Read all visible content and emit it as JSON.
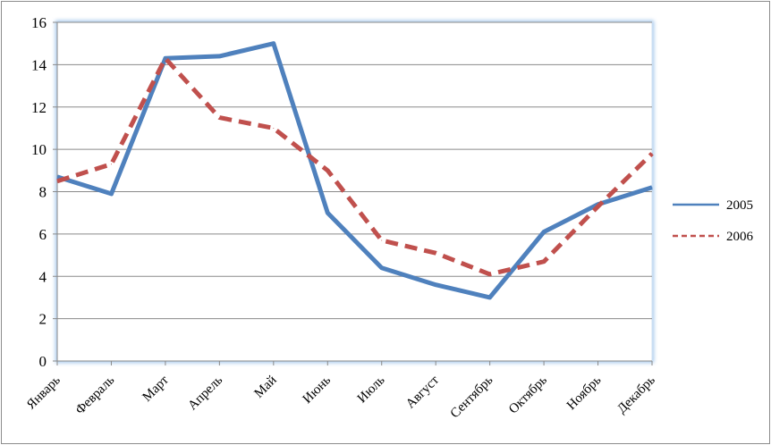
{
  "chart_data": {
    "type": "line",
    "title": "",
    "xlabel": "",
    "ylabel": "",
    "categories": [
      "Январь",
      "Февраль",
      "Март",
      "Апрель",
      "Май",
      "Июнь",
      "Июль",
      "Август",
      "Сентябрь",
      "Октябрь",
      "Ноябрь",
      "Декабрь"
    ],
    "series": [
      {
        "name": "2005",
        "values": [
          8.7,
          7.9,
          14.3,
          14.4,
          15.0,
          7.0,
          4.4,
          3.6,
          3.0,
          6.1,
          7.4,
          8.2
        ],
        "color": "#4f81bd",
        "style": "solid"
      },
      {
        "name": "2006",
        "values": [
          8.5,
          9.3,
          14.3,
          11.5,
          11.0,
          9.0,
          5.7,
          5.1,
          4.1,
          4.7,
          7.3,
          9.8
        ],
        "color": "#c0504d",
        "style": "dashed"
      }
    ],
    "yticks": [
      "0",
      "2",
      "4",
      "6",
      "8",
      "10",
      "12",
      "14",
      "16"
    ],
    "ylim": [
      0,
      16
    ],
    "grid": true,
    "legend_position": "right"
  }
}
